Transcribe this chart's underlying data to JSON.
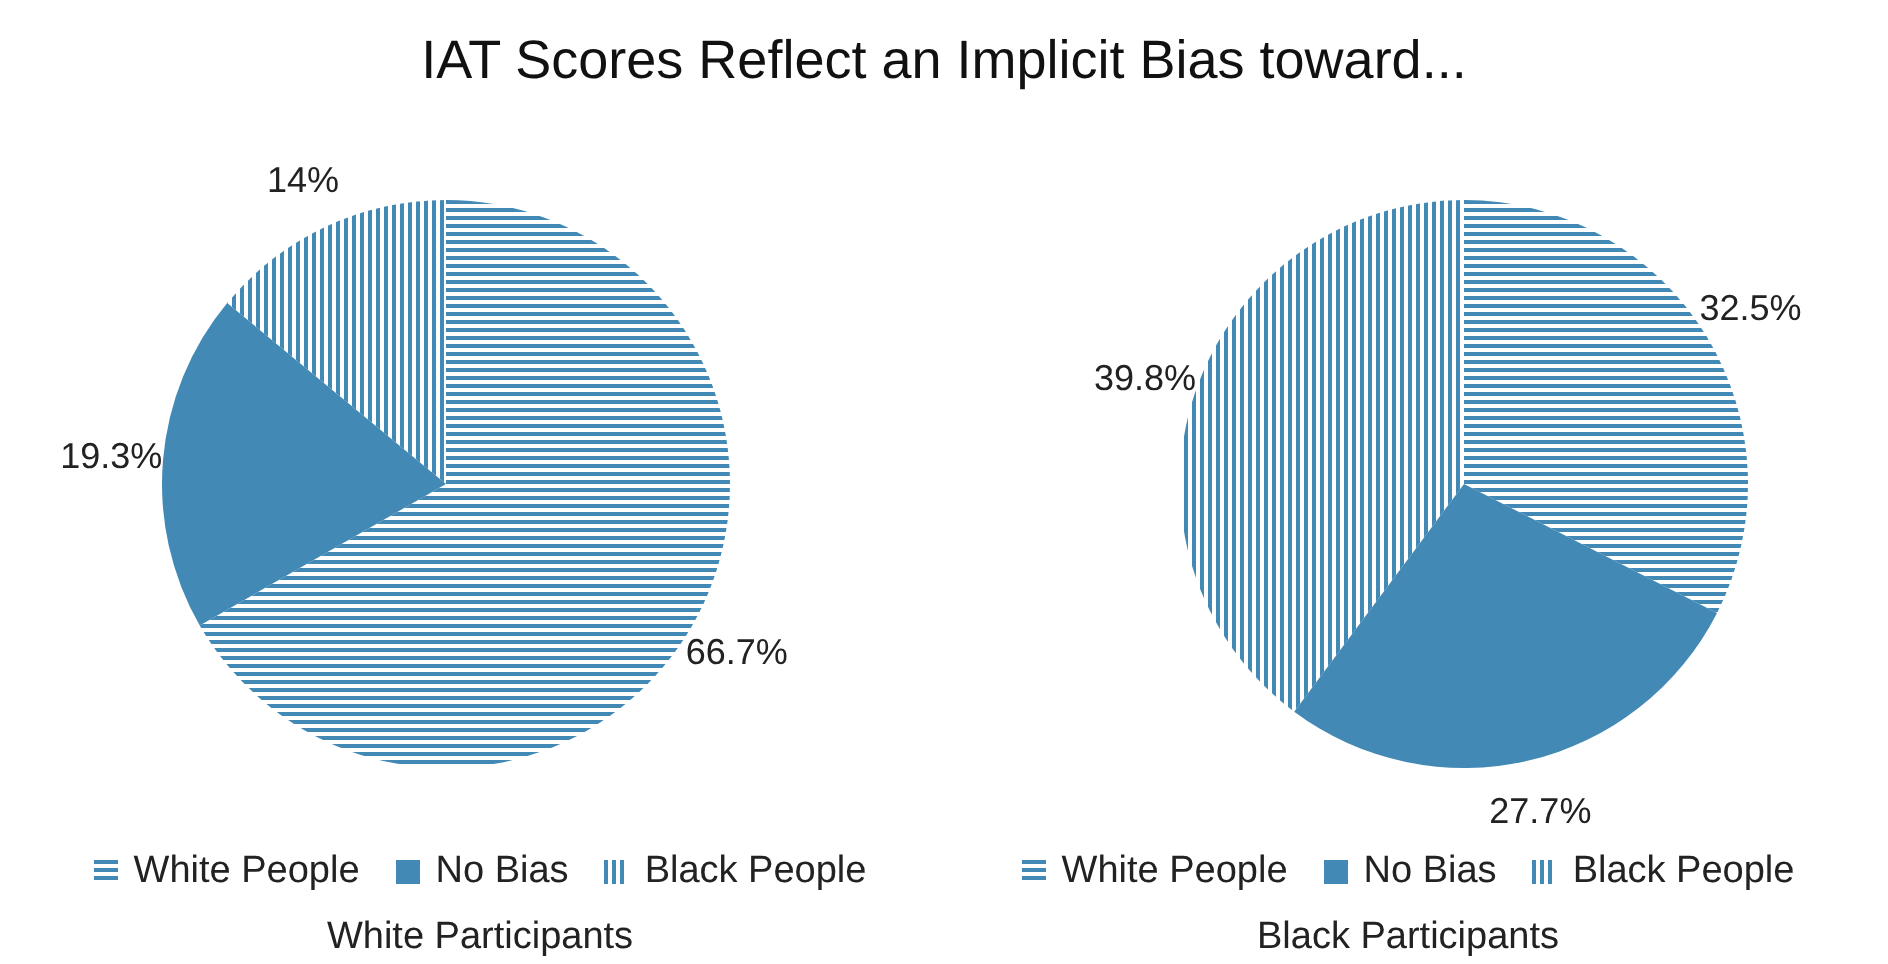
{
  "chart_data": [
    {
      "type": "pie",
      "title": "IAT Scores Reflect an Implicit Bias toward...",
      "xlabel": "White Participants",
      "categories": [
        "White People",
        "No Bias",
        "Black People"
      ],
      "values": [
        66.7,
        19.3,
        14
      ],
      "value_labels": [
        "66.7%",
        "19.3%",
        "14%"
      ],
      "colors": [
        "#4289b5",
        "#4289b5",
        "#4289b5"
      ],
      "legend": "bottom"
    },
    {
      "type": "pie",
      "xlabel": "Black Participants",
      "categories": [
        "White People",
        "No Bias",
        "Black People"
      ],
      "values": [
        32.5,
        27.7,
        39.8
      ],
      "value_labels": [
        "32.5%",
        "27.7%",
        "39.8%"
      ],
      "colors": [
        "#4289b5",
        "#4289b5",
        "#4289b5"
      ],
      "legend": "bottom"
    }
  ]
}
